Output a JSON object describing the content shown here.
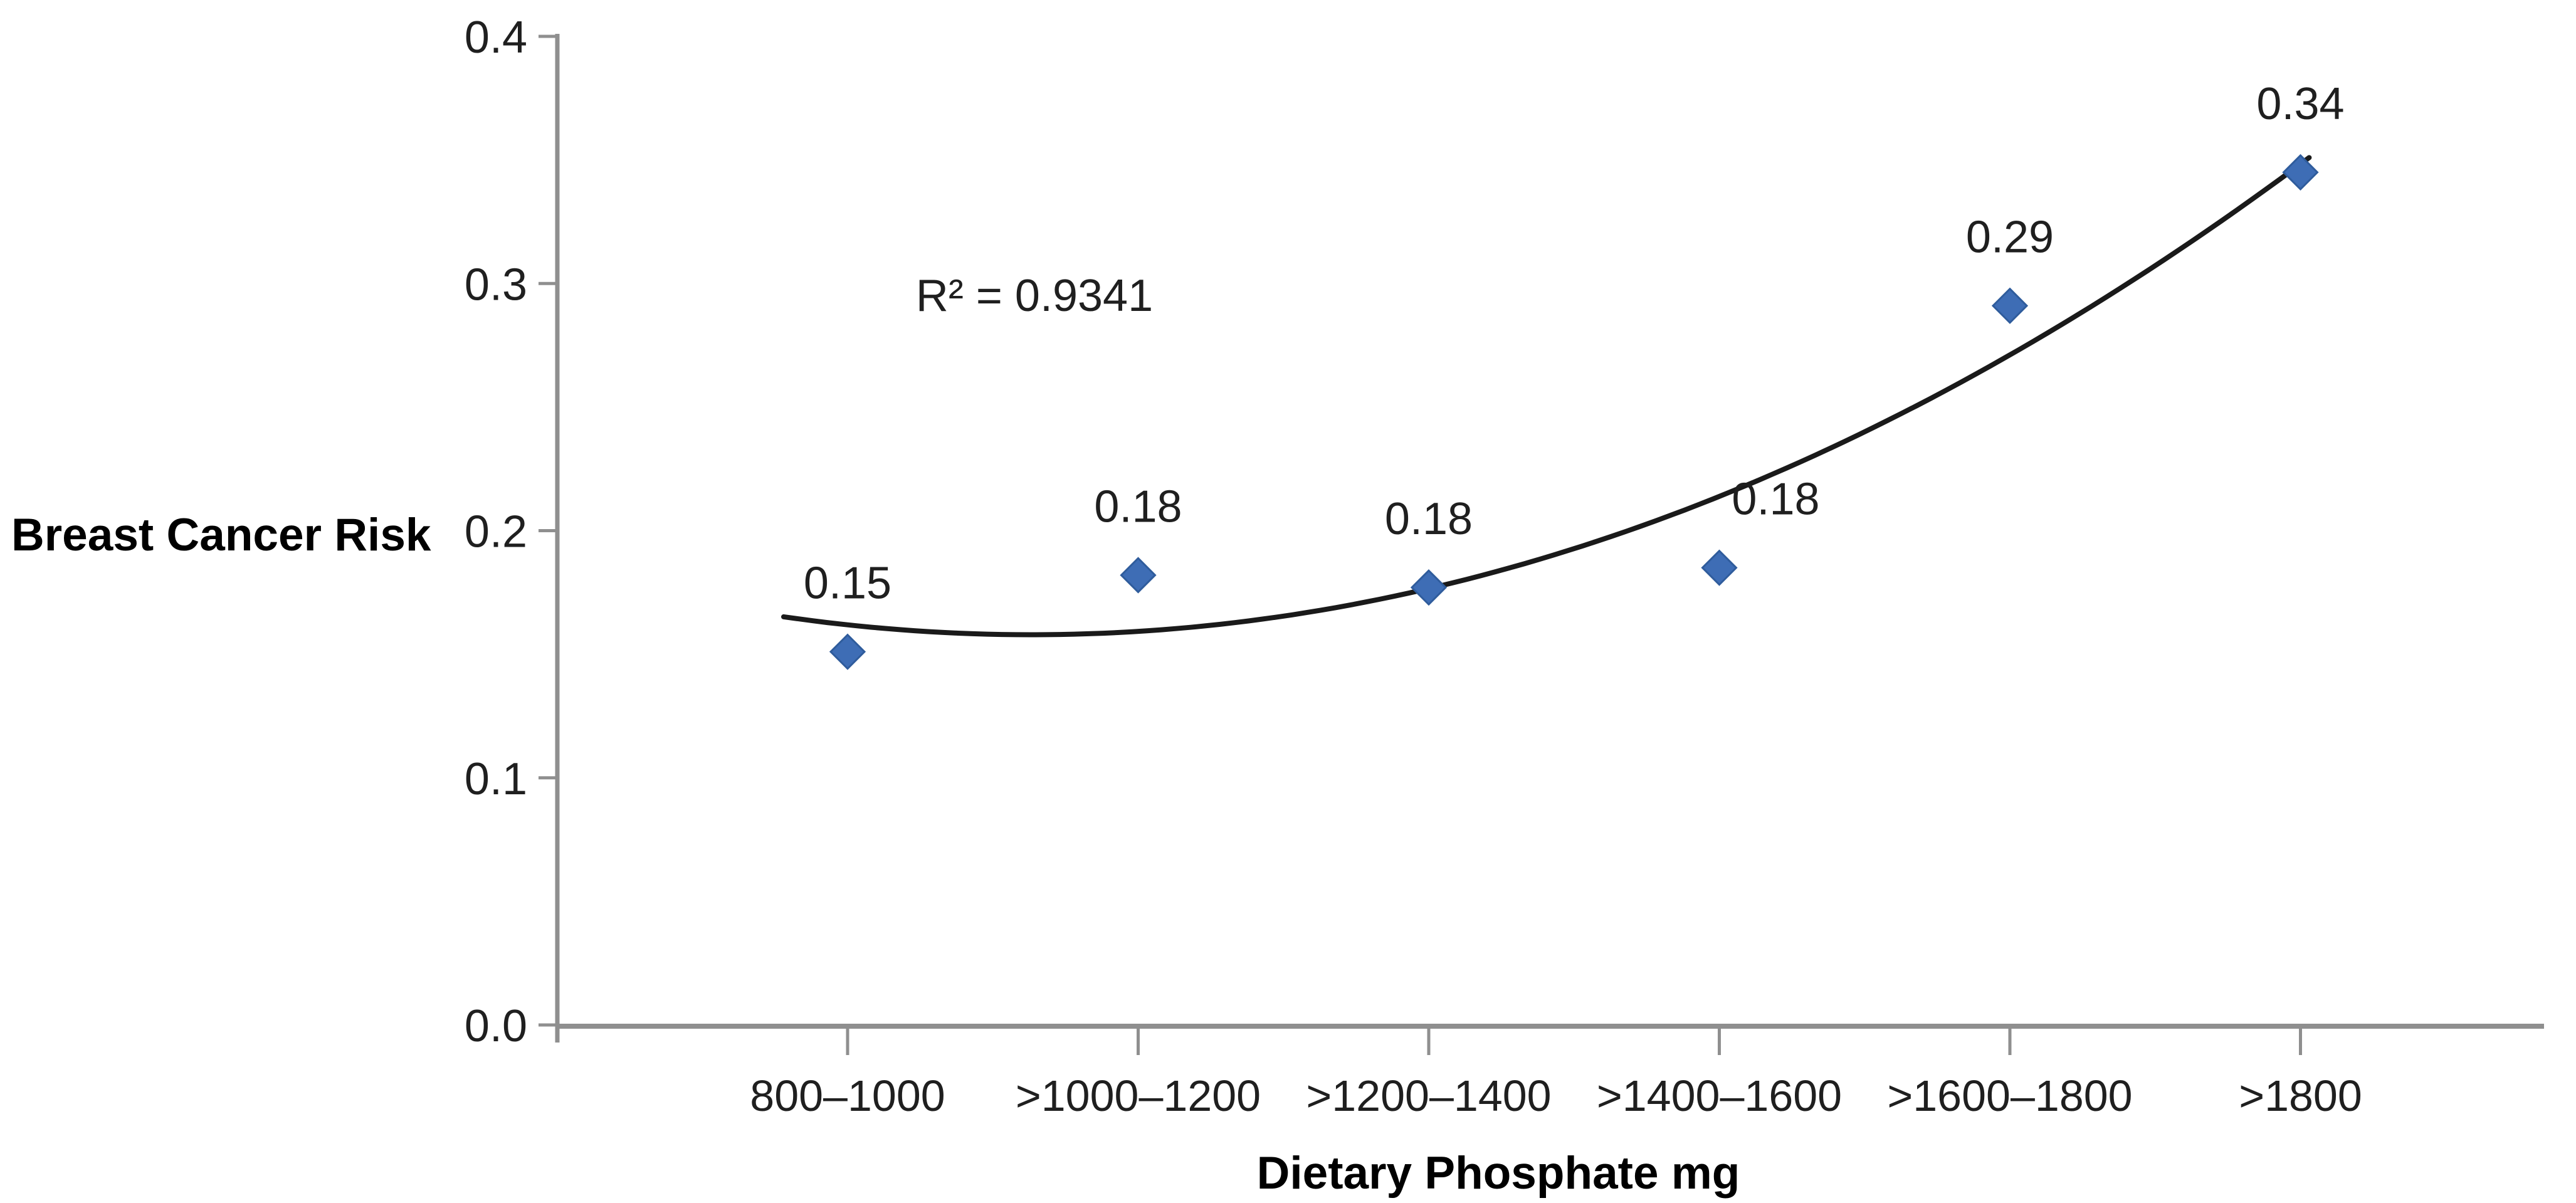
{
  "chart_data": {
    "type": "scatter",
    "title": "",
    "xlabel": "Dietary Phosphate mg",
    "ylabel": "Breast Cancer Risk",
    "categories": [
      "800–1000",
      ">1000–1200",
      ">1200–1400",
      ">1400–1600",
      ">1600–1800",
      ">1800"
    ],
    "points": [
      {
        "category": "800–1000",
        "label": "0.15",
        "value": 0.151
      },
      {
        "category": ">1000–1200",
        "label": "0.18",
        "value": 0.182
      },
      {
        "category": ">1200–1400",
        "label": "0.18",
        "value": 0.177
      },
      {
        "category": ">1400–1600",
        "label": "0.18",
        "value": 0.185
      },
      {
        "category": ">1600–1800",
        "label": "0.29",
        "value": 0.291
      },
      {
        "category": ">1800",
        "label": "0.34",
        "value": 0.345
      }
    ],
    "yticks": [
      "0.0",
      "0.1",
      "0.2",
      "0.3",
      "0.4"
    ],
    "ylim": [
      0,
      0.4
    ],
    "grid": false,
    "legend": false,
    "annotation": {
      "text": "R² = 0.9341",
      "r_squared": 0.9341
    },
    "trendline": {
      "kind": "polynomial",
      "order": 2,
      "color": "#1a1a1a"
    },
    "marker": {
      "shape": "diamond",
      "fill": "#3E6DB5",
      "stroke": "#2F5C9C",
      "size": 54
    },
    "colors": {
      "axis": "#8F8F8F",
      "tick": "#8F8F8F",
      "text": "#1F1F1F",
      "trendline": "#1a1a1a"
    }
  }
}
